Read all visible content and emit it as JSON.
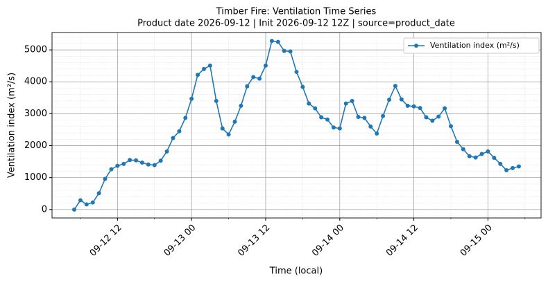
{
  "chart_data": {
    "type": "line",
    "title": "Timber Fire: Ventilation Time Series",
    "subtitle": "Product date 2026-09-12 | Init 2026-09-12 12Z | source=product_date",
    "x_label": "Time (local)",
    "y_label": "Ventilation index (m²/s)",
    "x": [
      "09-12 05",
      "09-12 06",
      "09-12 07",
      "09-12 08",
      "09-12 09",
      "09-12 10",
      "09-12 11",
      "09-12 12",
      "09-12 13",
      "09-12 14",
      "09-12 15",
      "09-12 16",
      "09-12 17",
      "09-12 18",
      "09-12 19",
      "09-12 20",
      "09-12 21",
      "09-12 22",
      "09-12 23",
      "09-13 00",
      "09-13 01",
      "09-13 02",
      "09-13 03",
      "09-13 04",
      "09-13 05",
      "09-13 06",
      "09-13 07",
      "09-13 08",
      "09-13 09",
      "09-13 10",
      "09-13 11",
      "09-13 12",
      "09-13 13",
      "09-13 14",
      "09-13 15",
      "09-13 16",
      "09-13 17",
      "09-13 18",
      "09-13 19",
      "09-13 20",
      "09-13 21",
      "09-13 22",
      "09-13 23",
      "09-14 00",
      "09-14 01",
      "09-14 02",
      "09-14 03",
      "09-14 04",
      "09-14 05",
      "09-14 06",
      "09-14 07",
      "09-14 08",
      "09-14 09",
      "09-14 10",
      "09-14 11",
      "09-14 12",
      "09-14 13",
      "09-14 14",
      "09-14 15",
      "09-14 16",
      "09-14 17",
      "09-14 18",
      "09-14 19",
      "09-14 20",
      "09-14 21",
      "09-14 22",
      "09-14 23",
      "09-15 00",
      "09-15 01",
      "09-15 02",
      "09-15 03",
      "09-15 04",
      "09-15 05"
    ],
    "series": [
      {
        "name": "Ventilation index (m²/s)",
        "color": "#1f77b4",
        "values": [
          0,
          290,
          160,
          220,
          510,
          960,
          1260,
          1370,
          1430,
          1550,
          1540,
          1470,
          1410,
          1390,
          1530,
          1820,
          2240,
          2450,
          2870,
          3470,
          4220,
          4400,
          4510,
          3400,
          2540,
          2350,
          2750,
          3250,
          3860,
          4150,
          4100,
          4510,
          5280,
          5250,
          4970,
          4950,
          4310,
          3840,
          3320,
          3170,
          2890,
          2820,
          2570,
          2540,
          3320,
          3400,
          2900,
          2870,
          2600,
          2380,
          2930,
          3440,
          3870,
          3450,
          3250,
          3230,
          3180,
          2890,
          2780,
          2910,
          3170,
          2610,
          2120,
          1890,
          1670,
          1630,
          1740,
          1820,
          1620,
          1430,
          1230,
          1300,
          1350
        ]
      }
    ],
    "xlim": [
      "09-12 01:24",
      "09-15 08:36"
    ],
    "xticks": [
      "09-12 12",
      "09-13 00",
      "09-13 12",
      "09-14 00",
      "09-14 12",
      "09-15 00"
    ],
    "ylim": [
      -264,
      5544
    ],
    "yticks": [
      0,
      1000,
      2000,
      3000,
      4000,
      5000
    ],
    "grid": true,
    "legend": "upper right"
  }
}
